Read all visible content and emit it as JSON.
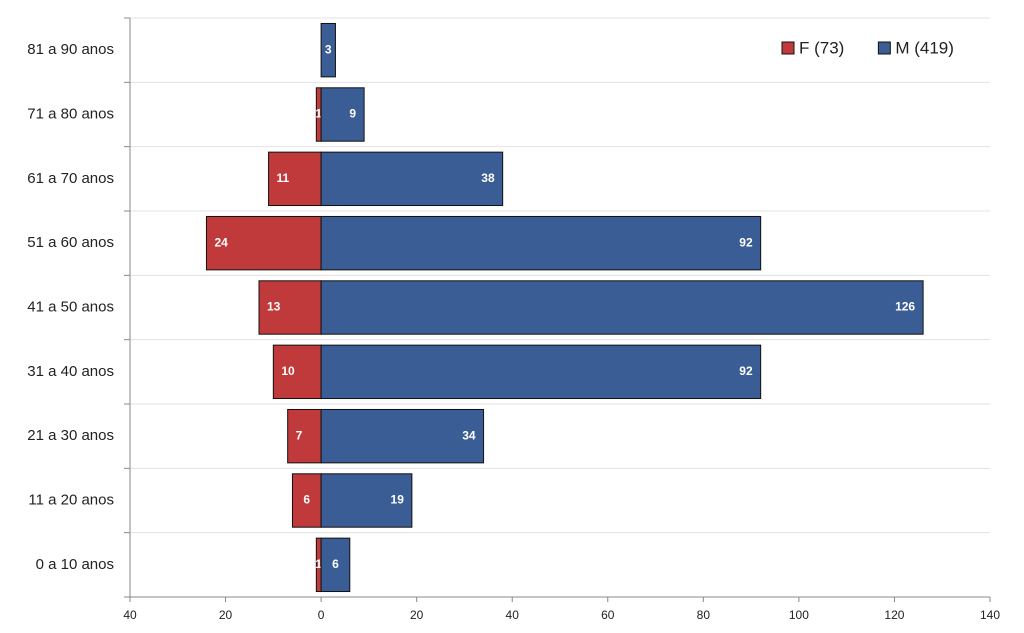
{
  "chart_data": {
    "type": "pyramid",
    "categories": [
      "0 a 10 anos",
      "11 a 20 anos",
      "21 a 30 anos",
      "31 a 40 anos",
      "41 a 50 anos",
      "51 a 60 anos",
      "61 a 70 anos",
      "71 a 80 anos",
      "81 a 90 anos"
    ],
    "series": [
      {
        "name": "F (73)",
        "color": "#c0393b",
        "values": [
          -1,
          -6,
          -7,
          -10,
          -13,
          -24,
          -11,
          -1,
          null
        ],
        "value_labels": [
          "1",
          "6",
          "7",
          "10",
          "13",
          "24",
          "11",
          "1",
          null
        ]
      },
      {
        "name": "M (419)",
        "color": "#3b5d95",
        "values": [
          6,
          19,
          34,
          92,
          126,
          92,
          38,
          9,
          3
        ]
      }
    ],
    "xlim": [
      -40,
      140
    ],
    "xticks": [
      {
        "value": -40,
        "label": "40"
      },
      {
        "value": -20,
        "label": "20"
      },
      0,
      20,
      40,
      60,
      80,
      100,
      120,
      140
    ],
    "grid": true,
    "legend": "top-right"
  }
}
